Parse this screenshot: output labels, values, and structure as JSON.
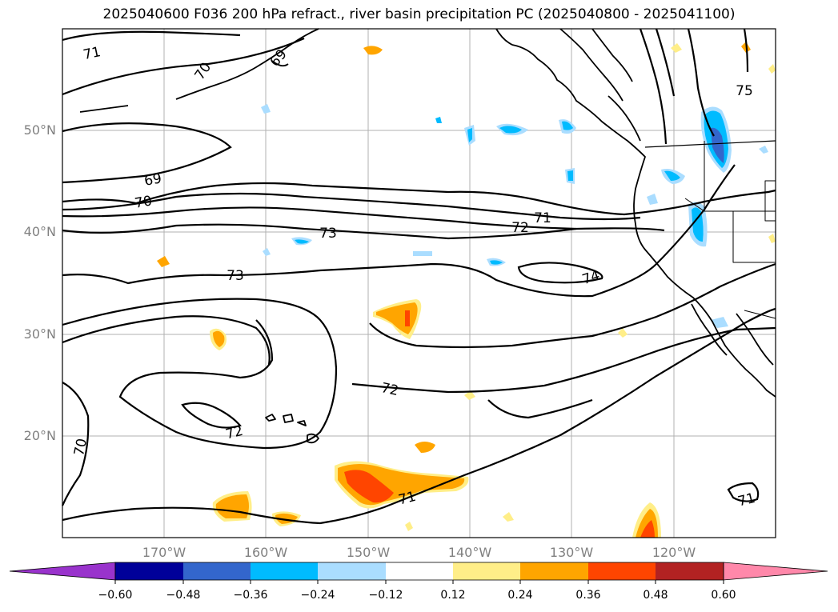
{
  "title": "2025040600 F036 200 hPa refract., river basin precipitation PC (2025040800 - 2025041100)",
  "lat_labels": [
    "50°N",
    "40°N",
    "30°N",
    "20°N"
  ],
  "lon_labels": [
    "170°W",
    "160°W",
    "150°W",
    "140°W",
    "130°W",
    "120°W"
  ],
  "contour_labels": [
    "71",
    "70",
    "69",
    "69",
    "70",
    "73",
    "71",
    "72",
    "73",
    "74",
    "72",
    "72",
    "70",
    "71",
    "71",
    "75"
  ],
  "colorbar": {
    "ticks": [
      "−0.60",
      "−0.48",
      "−0.36",
      "−0.24",
      "−0.12",
      "0.12",
      "0.24",
      "0.36",
      "0.48",
      "0.60"
    ],
    "colors": [
      "#9933cc",
      "#000099",
      "#3366cc",
      "#00bbff",
      "#aaddff",
      "#ffffff",
      "#ffee88",
      "#ffa500",
      "#ff4500",
      "#b22222",
      "#ff88aa"
    ]
  }
}
